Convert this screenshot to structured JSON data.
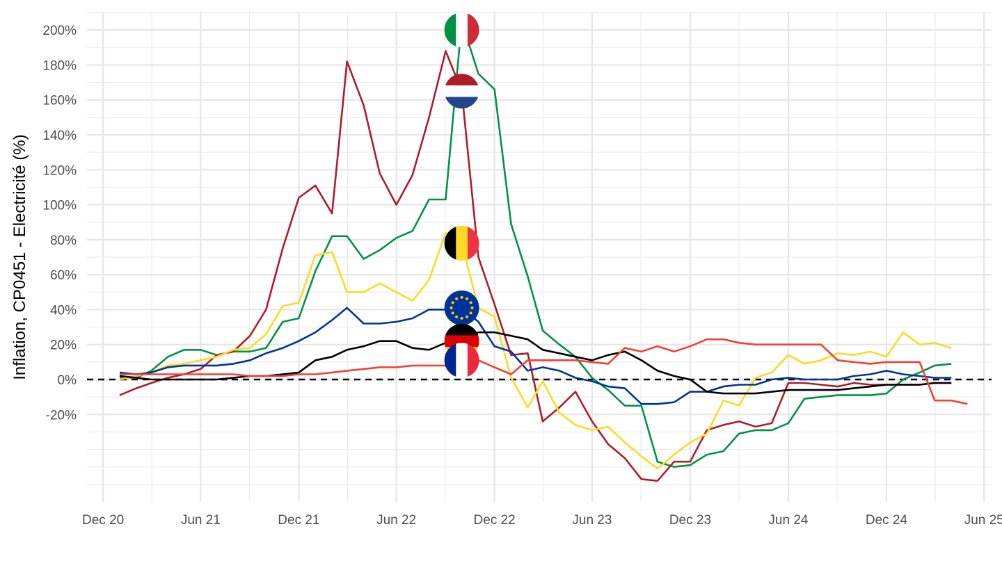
{
  "chart_data": {
    "type": "line",
    "title": "",
    "xlabel": "",
    "ylabel": "Inflation, CP0451 - Electricité (%)",
    "ylim": [
      -70,
      210
    ],
    "xlim": [
      "2020-11-01",
      "2025-06-15"
    ],
    "grid": true,
    "legend": "none",
    "reference_line": {
      "y": 0,
      "style": "dashed",
      "color": "#000000"
    },
    "x_ticks": [
      {
        "date": "2020-12-01",
        "label": "Dec 20"
      },
      {
        "date": "2021-06-01",
        "label": "Jun 21"
      },
      {
        "date": "2021-12-01",
        "label": "Dec 21"
      },
      {
        "date": "2022-06-01",
        "label": "Jun 22"
      },
      {
        "date": "2022-12-01",
        "label": "Dec 22"
      },
      {
        "date": "2023-06-01",
        "label": "Jun 23"
      },
      {
        "date": "2023-12-01",
        "label": "Dec 23"
      },
      {
        "date": "2024-06-01",
        "label": "Jun 24"
      },
      {
        "date": "2024-12-01",
        "label": "Dec 24"
      },
      {
        "date": "2025-06-01",
        "label": "Jun 25"
      }
    ],
    "y_ticks": [
      {
        "value": -20,
        "label": "-20%"
      },
      {
        "value": 0,
        "label": "0%"
      },
      {
        "value": 20,
        "label": "20%"
      },
      {
        "value": 40,
        "label": "40%"
      },
      {
        "value": 60,
        "label": "60%"
      },
      {
        "value": 80,
        "label": "80%"
      },
      {
        "value": 100,
        "label": "100%"
      },
      {
        "value": 120,
        "label": "120%"
      },
      {
        "value": 140,
        "label": "140%"
      },
      {
        "value": 160,
        "label": "160%"
      },
      {
        "value": 180,
        "label": "180%"
      },
      {
        "value": 200,
        "label": "200%"
      }
    ],
    "y_minor": [
      -60,
      -50,
      -40,
      -30,
      -10,
      10,
      30,
      50,
      70,
      90,
      110,
      130,
      150,
      170,
      190,
      210
    ],
    "x_start": "2021-01-01",
    "series": [
      {
        "flag": "italy",
        "color": "#009246",
        "values": [
          1,
          1,
          5,
          13,
          17,
          17,
          14,
          16,
          16,
          18,
          33,
          35,
          62,
          82,
          82,
          69,
          74,
          81,
          85,
          103,
          103,
          205,
          175,
          166,
          89,
          59,
          28,
          20,
          13,
          1,
          -6,
          -15,
          -15,
          -47,
          -50,
          -49,
          -43,
          -41,
          -31,
          -29,
          -29,
          -25,
          -11,
          -10,
          -9,
          -9,
          -9,
          -8,
          0,
          4,
          8,
          9
        ]
      },
      {
        "flag": "netherlands",
        "color": "#AE1C28",
        "values": [
          -9,
          -5,
          -2,
          1,
          3,
          6,
          14,
          16,
          25,
          40,
          75,
          104,
          111,
          95,
          182,
          157,
          118,
          100,
          117,
          150,
          188,
          165,
          70,
          43,
          14,
          15,
          -24,
          -16,
          -7,
          -24,
          -37,
          -45,
          -57,
          -58,
          -47,
          -47,
          -29,
          -26,
          -24,
          -27,
          -25,
          -2,
          -2,
          -3,
          -4,
          -2,
          -3,
          -3,
          -3,
          -3,
          -2,
          -2
        ]
      },
      {
        "flag": "belgium",
        "color": "#FDDA24",
        "values": [
          0,
          2,
          4,
          8,
          9,
          11,
          13,
          17,
          18,
          26,
          42,
          44,
          71,
          73,
          50,
          50,
          55,
          50,
          45,
          57,
          84,
          78,
          41,
          36,
          1,
          -16,
          -1,
          -19,
          -26,
          -29,
          -27,
          -36,
          -44,
          -51,
          -43,
          -36,
          -31,
          -12,
          -15,
          1,
          4,
          14,
          9,
          11,
          15,
          14,
          16,
          13,
          27,
          20,
          21,
          18
        ]
      },
      {
        "flag": "eu",
        "color": "#003399",
        "values": [
          4,
          3,
          4,
          7,
          8,
          8,
          8,
          9,
          11,
          15,
          18,
          22,
          27,
          34,
          41,
          32,
          32,
          33,
          35,
          40,
          40,
          41,
          33,
          19,
          16,
          5,
          7,
          5,
          1,
          -1,
          -4,
          -5,
          -14,
          -14,
          -13,
          -7,
          -7,
          -4,
          -3,
          -3,
          0,
          1,
          0,
          0,
          0,
          2,
          3,
          5,
          3,
          2,
          1,
          1
        ]
      },
      {
        "flag": "germany",
        "color": "#000000",
        "values": [
          2,
          1,
          0,
          0,
          0,
          0,
          0,
          1,
          2,
          2,
          3,
          4,
          11,
          13,
          17,
          19,
          22,
          22,
          18,
          17,
          21,
          22,
          27,
          27,
          25,
          23,
          17,
          15,
          13,
          11,
          14,
          16,
          11,
          5,
          2,
          0,
          -7,
          -8,
          -8,
          -8,
          -7,
          -6,
          -6,
          -6,
          -6,
          -5,
          -4,
          -3,
          -3,
          -3,
          -2,
          -2
        ]
      },
      {
        "flag": "france",
        "color": "#EF4135",
        "values": [
          3,
          3,
          3,
          3,
          3,
          3,
          3,
          3,
          2,
          2,
          2,
          3,
          3,
          4,
          5,
          6,
          7,
          7,
          8,
          8,
          8,
          11,
          11,
          7,
          3,
          11,
          11,
          11,
          11,
          10,
          9,
          18,
          16,
          19,
          16,
          19,
          23,
          23,
          21,
          20,
          20,
          20,
          20,
          20,
          11,
          10,
          9,
          10,
          10,
          10,
          -12,
          -12,
          -14
        ]
      }
    ]
  }
}
